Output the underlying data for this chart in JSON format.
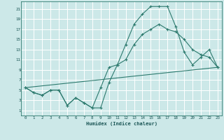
{
  "title": "",
  "xlabel": "Humidex (Indice chaleur)",
  "ylabel": "",
  "background_color": "#cce8e8",
  "grid_color": "#ffffff",
  "line_color": "#2d7a6e",
  "x_ticks": [
    0,
    1,
    2,
    3,
    4,
    5,
    6,
    7,
    8,
    9,
    10,
    11,
    12,
    13,
    14,
    15,
    16,
    17,
    18,
    19,
    20,
    21,
    22,
    23
  ],
  "x_tick_labels": [
    "0",
    "1",
    "2",
    "3",
    "4",
    "5",
    "6",
    "7",
    "8",
    "9",
    "10",
    "11",
    "12",
    "13",
    "14",
    "15",
    "16",
    "17",
    "18",
    "19",
    "20",
    "21",
    "22",
    "23"
  ],
  "y_ticks": [
    1,
    3,
    5,
    7,
    9,
    11,
    13,
    15,
    17,
    19,
    21
  ],
  "xlim": [
    -0.5,
    23.5
  ],
  "ylim": [
    0.0,
    22.5
  ],
  "line1_x": [
    0,
    1,
    2,
    3,
    4,
    5,
    6,
    7,
    8,
    9,
    10,
    11,
    12,
    13,
    14,
    15,
    16,
    17,
    18,
    19,
    20,
    21,
    22,
    23
  ],
  "line1_y": [
    5.5,
    4.5,
    4.0,
    5.0,
    5.0,
    2.0,
    3.5,
    2.5,
    1.5,
    1.5,
    6.5,
    10.0,
    14.0,
    18.0,
    20.0,
    21.5,
    21.5,
    21.5,
    17.5,
    12.5,
    10.0,
    11.5,
    13.0,
    9.5
  ],
  "line2_x": [
    0,
    1,
    2,
    3,
    4,
    5,
    6,
    7,
    8,
    9,
    10,
    11,
    12,
    13,
    14,
    15,
    16,
    17,
    18,
    19,
    20,
    21,
    22,
    23
  ],
  "line2_y": [
    5.5,
    4.5,
    4.0,
    5.0,
    5.0,
    2.0,
    3.5,
    2.5,
    1.5,
    5.5,
    9.5,
    10.0,
    11.0,
    14.0,
    16.0,
    17.0,
    18.0,
    17.0,
    16.5,
    15.0,
    13.0,
    12.0,
    11.5,
    9.5
  ],
  "line3_x": [
    0,
    23
  ],
  "line3_y": [
    5.5,
    9.5
  ]
}
